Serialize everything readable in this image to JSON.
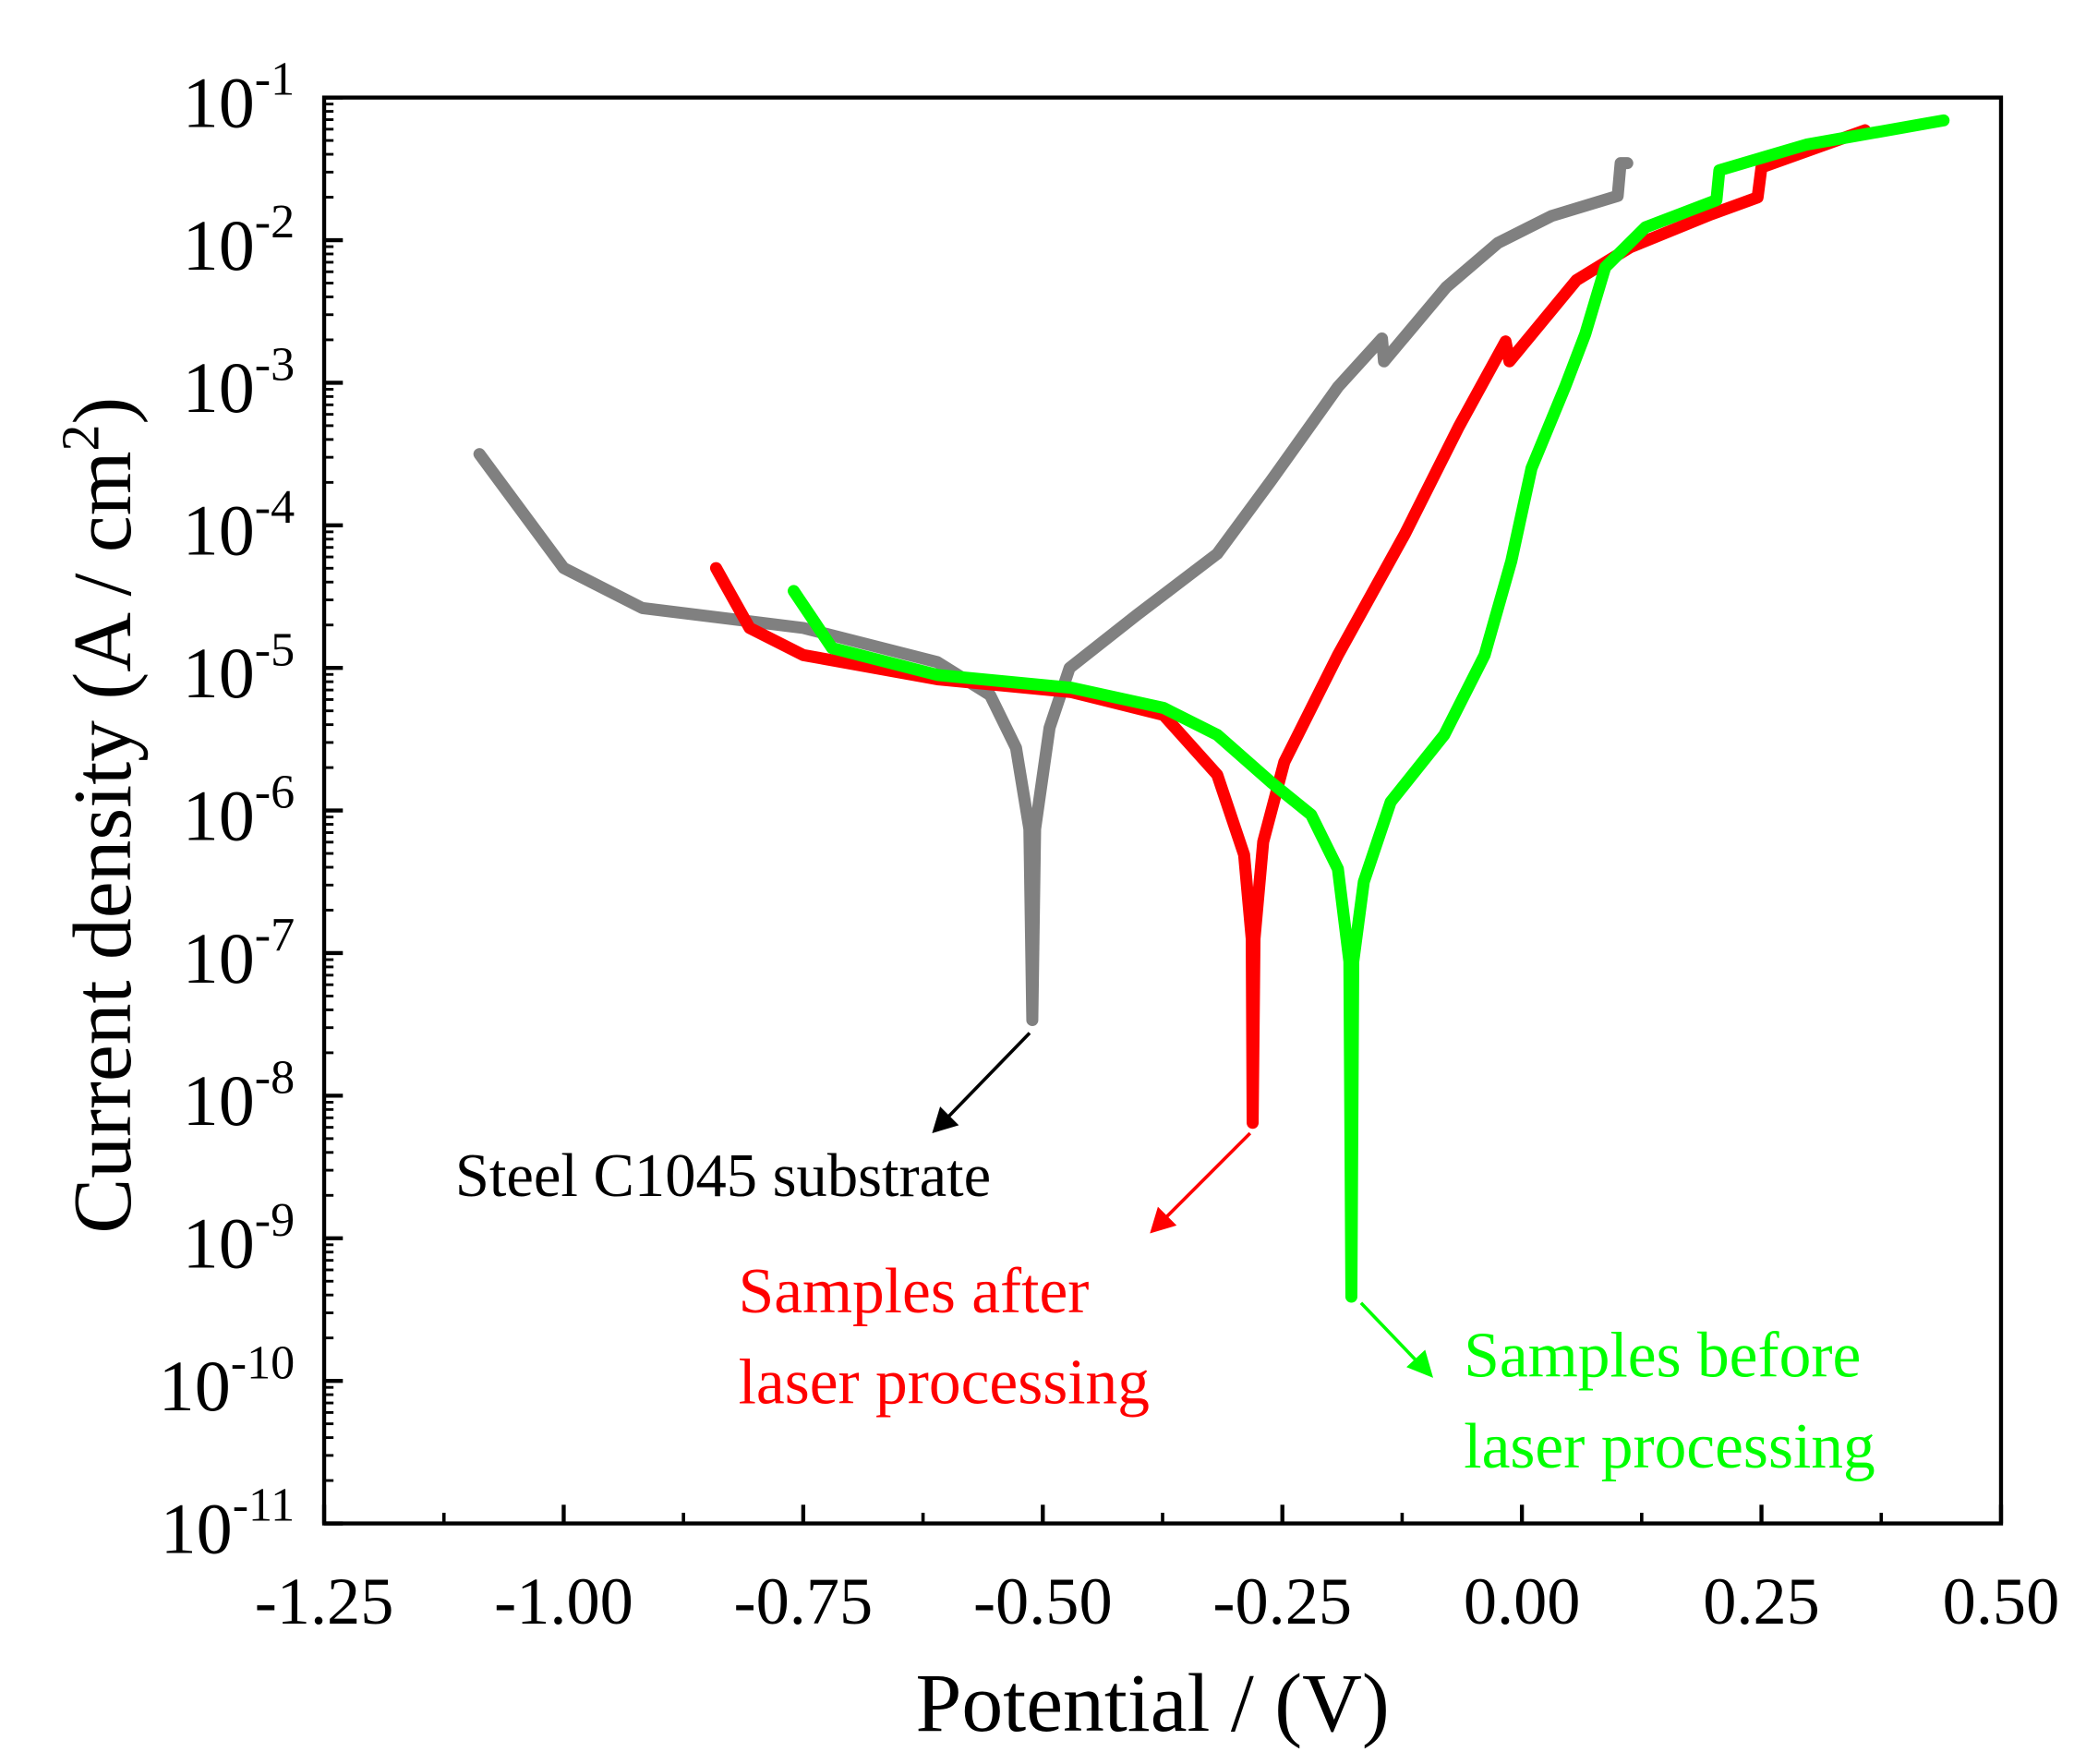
{
  "chart_data": {
    "type": "line",
    "xlabel": "Potential / (V)",
    "ylabel": "Current density (A / cm",
    "ylabel_sup": "2",
    "ylabel_end": ")",
    "xlim": [
      -1.25,
      0.5
    ],
    "ylim_log10": [
      -11,
      -1
    ],
    "y_scale": "log",
    "xticks": [
      "-1.25",
      "-1.00",
      "-0.75",
      "-0.50",
      "-0.25",
      "0.00",
      "0.25",
      "0.50"
    ],
    "xtick_values": [
      -1.25,
      -1.0,
      -0.75,
      -0.5,
      -0.25,
      0.0,
      0.25,
      0.5
    ],
    "ytick_exponents": [
      "-1",
      "-2",
      "-3",
      "-4",
      "-5",
      "-6",
      "-7",
      "-8",
      "-9",
      "-10",
      "-11"
    ],
    "ytick_base": "10",
    "grid": false,
    "series": [
      {
        "name": "Steel C1045 substrate",
        "color": "#808080",
        "points_E_log10i": [
          [
            -1.088,
            -3.5
          ],
          [
            -1.0,
            -4.3
          ],
          [
            -0.918,
            -4.58
          ],
          [
            -0.75,
            -4.72
          ],
          [
            -0.61,
            -4.96
          ],
          [
            -0.555,
            -5.19
          ],
          [
            -0.528,
            -5.56
          ],
          [
            -0.514,
            -6.13
          ],
          [
            -0.511,
            -7.47
          ],
          [
            -0.508,
            -6.13
          ],
          [
            -0.493,
            -5.42
          ],
          [
            -0.472,
            -5.0
          ],
          [
            -0.402,
            -4.63
          ],
          [
            -0.318,
            -4.2
          ],
          [
            -0.262,
            -3.69
          ],
          [
            -0.192,
            -3.03
          ],
          [
            -0.146,
            -2.69
          ],
          [
            -0.144,
            -2.85
          ],
          [
            -0.079,
            -2.33
          ],
          [
            -0.025,
            -2.02
          ],
          [
            0.031,
            -1.83
          ],
          [
            0.1,
            -1.69
          ],
          [
            0.103,
            -1.46
          ],
          [
            0.11,
            -1.46
          ]
        ]
      },
      {
        "name": "Samples after laser processing",
        "color": "#ff0000",
        "points_E_log10i": [
          [
            -0.841,
            -4.3
          ],
          [
            -0.806,
            -4.72
          ],
          [
            -0.75,
            -4.91
          ],
          [
            -0.61,
            -5.08
          ],
          [
            -0.47,
            -5.17
          ],
          [
            -0.374,
            -5.33
          ],
          [
            -0.318,
            -5.75
          ],
          [
            -0.29,
            -6.31
          ],
          [
            -0.282,
            -6.9
          ],
          [
            -0.281,
            -8.19
          ],
          [
            -0.279,
            -6.9
          ],
          [
            -0.27,
            -6.22
          ],
          [
            -0.248,
            -5.66
          ],
          [
            -0.192,
            -4.91
          ],
          [
            -0.122,
            -4.06
          ],
          [
            -0.066,
            -3.31
          ],
          [
            -0.017,
            -2.71
          ],
          [
            -0.013,
            -2.85
          ],
          [
            0.057,
            -2.28
          ],
          [
            0.113,
            -2.05
          ],
          [
            0.197,
            -1.82
          ],
          [
            0.246,
            -1.7
          ],
          [
            0.25,
            -1.49
          ],
          [
            0.358,
            -1.23
          ]
        ]
      },
      {
        "name": "Samples before laser processing",
        "color": "#00ff00",
        "points_E_log10i": [
          [
            -0.76,
            -4.46
          ],
          [
            -0.72,
            -4.86
          ],
          [
            -0.61,
            -5.05
          ],
          [
            -0.47,
            -5.14
          ],
          [
            -0.374,
            -5.28
          ],
          [
            -0.318,
            -5.47
          ],
          [
            -0.262,
            -5.8
          ],
          [
            -0.22,
            -6.03
          ],
          [
            -0.192,
            -6.41
          ],
          [
            -0.18,
            -7.06
          ],
          [
            -0.178,
            -9.41
          ],
          [
            -0.176,
            -7.06
          ],
          [
            -0.165,
            -6.5
          ],
          [
            -0.137,
            -5.94
          ],
          [
            -0.081,
            -5.47
          ],
          [
            -0.039,
            -4.91
          ],
          [
            -0.011,
            -4.25
          ],
          [
            0.01,
            -3.6
          ],
          [
            0.045,
            -3.03
          ],
          [
            0.066,
            -2.66
          ],
          [
            0.087,
            -2.19
          ],
          [
            0.129,
            -1.91
          ],
          [
            0.203,
            -1.72
          ],
          [
            0.206,
            -1.51
          ],
          [
            0.297,
            -1.33
          ],
          [
            0.44,
            -1.16
          ]
        ]
      }
    ],
    "annotations": [
      {
        "lines": [
          "Steel C1045 substrate"
        ],
        "color": "#000000"
      },
      {
        "lines": [
          "Samples after",
          "laser processing"
        ],
        "color": "#ff0000"
      },
      {
        "lines": [
          "Samples before",
          "laser processing"
        ],
        "color": "#00ff00"
      }
    ]
  }
}
